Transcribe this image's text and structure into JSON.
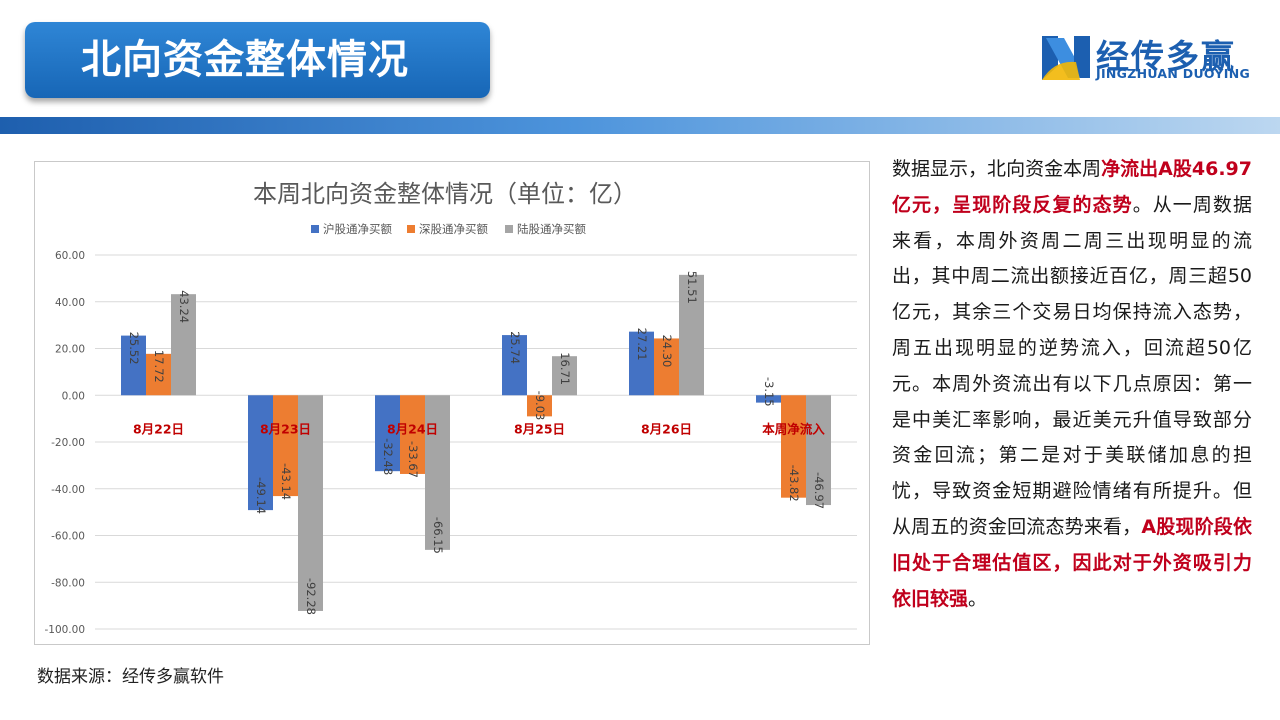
{
  "header": {
    "title": "北向资金整体情况"
  },
  "logo": {
    "name_cn": "经传多赢",
    "name_en": "JINGZHUAN DUOYING",
    "icon": "jingzhuan-logo-icon"
  },
  "chart_data": {
    "type": "bar",
    "title": "本周北向资金整体情况（单位：亿）",
    "categories": [
      "8月22日",
      "8月23日",
      "8月24日",
      "8月25日",
      "8月26日",
      "本周净流入"
    ],
    "series": [
      {
        "name": "沪股通净买额",
        "color": "#4472c4",
        "values": [
          25.52,
          -49.14,
          -32.48,
          25.74,
          27.21,
          -3.15
        ]
      },
      {
        "name": "深股通净买额",
        "color": "#ed7d31",
        "values": [
          17.72,
          -43.14,
          -33.67,
          -9.03,
          24.3,
          -43.82
        ]
      },
      {
        "name": "陆股通净买额",
        "color": "#a5a5a5",
        "values": [
          43.24,
          -92.28,
          -66.15,
          16.71,
          51.51,
          -46.97
        ]
      }
    ],
    "ylim": [
      -100,
      60
    ],
    "yticks": [
      "60.00",
      "40.00",
      "20.00",
      "0.00",
      "-20.00",
      "-40.00",
      "-60.00",
      "-80.00",
      "-100.00"
    ],
    "value_labels": [
      [
        "25.52",
        "-49.14",
        "-32.48",
        "25.74",
        "27.21",
        "-3.15"
      ],
      [
        "17.72",
        "-43.14",
        "-33.67",
        "-9.03",
        "24.30",
        "-43.82"
      ],
      [
        "43.24",
        "-92.28",
        "-66.15",
        "16.71",
        "51.51",
        "-46.97"
      ]
    ],
    "category_label_color": "#c00000",
    "grid": true,
    "legend_position": "top"
  },
  "source": {
    "text": "数据来源：经传多赢软件"
  },
  "commentary": {
    "segments": [
      {
        "text": "数据显示，北向资金本周",
        "highlight": false
      },
      {
        "text": "净流出A股46.97亿元，呈现阶段反复的态势",
        "highlight": true
      },
      {
        "text": "。从一周数据来看，本周外资周二周三出现明显的流出，其中周二流出额接近百亿，周三超50亿元，其余三个交易日均保持流入态势，周五出现明显的逆势流入，回流超50亿元。本周外资流出有以下几点原因：第一是中美汇率影响，最近美元升值导致部分资金回流；第二是对于美联储加息的担忧，导致资金短期避险情绪有所提升。但从周五的资金回流态势来看，",
        "highlight": false
      },
      {
        "text": "A股现阶段依旧处于合理估值区，因此对于外资吸引力依旧较强",
        "highlight": true
      },
      {
        "text": "。",
        "highlight": false
      }
    ]
  }
}
